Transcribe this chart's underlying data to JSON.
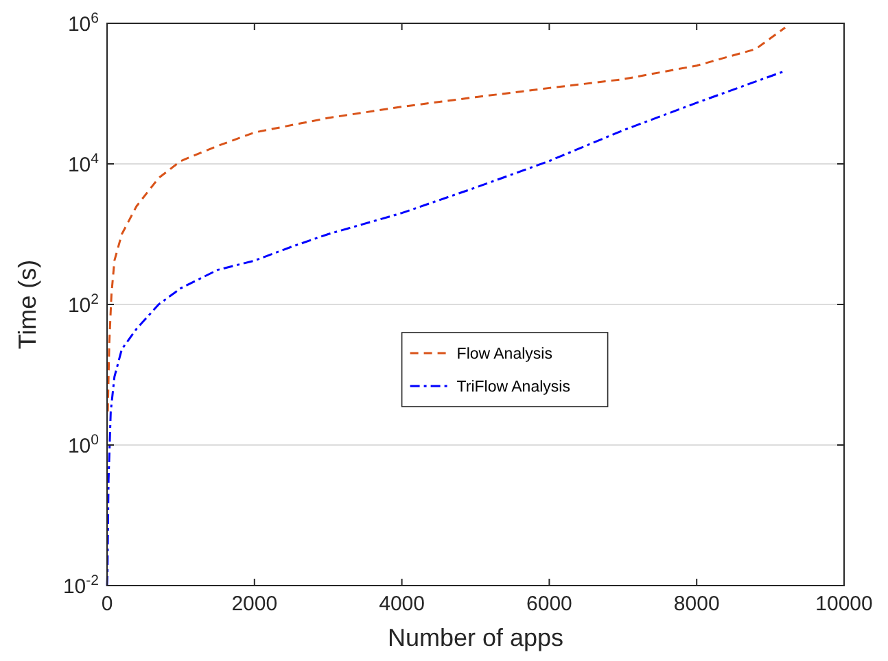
{
  "chart_data": {
    "type": "line",
    "xlabel": "Number of apps",
    "ylabel": "Time (s)",
    "log": "y",
    "grid": "y",
    "legend": "center",
    "xlim": [
      0,
      10000
    ],
    "xticks": [
      0,
      2000,
      4000,
      6000,
      8000,
      10000
    ],
    "ylim": [
      0.01,
      1000000
    ],
    "yticks": [
      {
        "value": 0.01,
        "label": "10$^{-2}$"
      },
      {
        "value": 1,
        "label": "10$^{0}$"
      },
      {
        "value": 100,
        "label": "10$^{2}$"
      },
      {
        "value": 10000,
        "label": "10$^{4}$"
      },
      {
        "value": 1000000,
        "label": "10$^{6}$"
      }
    ],
    "series": [
      {
        "name": "Flow Analysis",
        "color": "#d95319",
        "line_style": "dashed",
        "x": [
          10,
          30,
          60,
          100,
          200,
          400,
          700,
          1000,
          1500,
          2000,
          3000,
          4000,
          5000,
          6000,
          7000,
          8000,
          8800,
          9200
        ],
        "values": [
          3.0,
          28,
          140,
          420,
          1000,
          2500,
          6300,
          11000,
          18000,
          28000,
          45000,
          65000,
          89000,
          120000,
          160000,
          250000,
          430000,
          870000
        ]
      },
      {
        "name": "TriFlow Analysis",
        "color": "#0000ff",
        "line_style": "dotted",
        "x": [
          0,
          5,
          20,
          50,
          100,
          200,
          400,
          700,
          1000,
          1500,
          2000,
          2500,
          3000,
          4000,
          5000,
          6000,
          7000,
          8000,
          9200
        ],
        "values": [
          0.01,
          0.014,
          0.32,
          3.0,
          9.3,
          23,
          45,
          100,
          170,
          310,
          420,
          660,
          1000,
          2000,
          4600,
          11000,
          30000,
          74000,
          210000
        ]
      }
    ]
  }
}
